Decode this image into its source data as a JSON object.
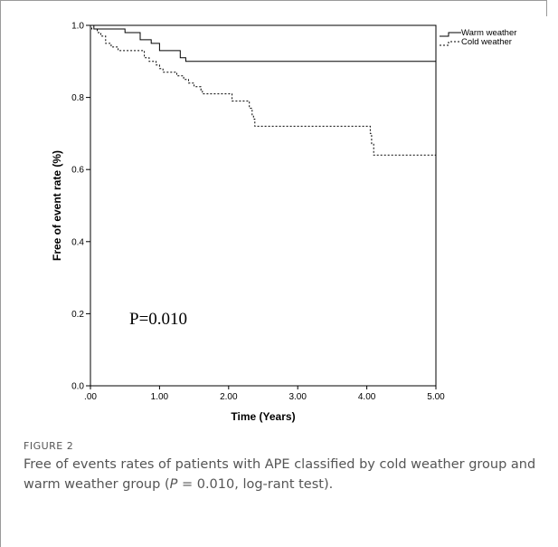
{
  "chart_data": {
    "type": "line",
    "xlabel": "Time (Years)",
    "ylabel": "Free of event rate (%)",
    "xlim": [
      0,
      5
    ],
    "ylim": [
      0,
      1
    ],
    "x_ticks": [
      ".00",
      "1.00",
      "2.00",
      "3.00",
      "4.00",
      "5.00"
    ],
    "y_ticks": [
      "0.0",
      "0.2",
      "0.4",
      "0.6",
      "0.8",
      "1.0"
    ],
    "legend_position": "top-right",
    "series": [
      {
        "name": "Warm weather",
        "style": "solid",
        "step_points": [
          [
            0,
            1.0
          ],
          [
            0.05,
            0.99
          ],
          [
            0.5,
            0.98
          ],
          [
            0.72,
            0.96
          ],
          [
            0.88,
            0.95
          ],
          [
            1.0,
            0.93
          ],
          [
            1.3,
            0.91
          ],
          [
            1.38,
            0.9
          ],
          [
            5.0,
            0.9
          ]
        ]
      },
      {
        "name": "Cold weather",
        "style": "dotted",
        "step_points": [
          [
            0,
            1.0
          ],
          [
            0.02,
            0.99
          ],
          [
            0.1,
            0.98
          ],
          [
            0.15,
            0.97
          ],
          [
            0.22,
            0.95
          ],
          [
            0.3,
            0.94
          ],
          [
            0.4,
            0.93
          ],
          [
            0.78,
            0.91
          ],
          [
            0.85,
            0.9
          ],
          [
            0.95,
            0.89
          ],
          [
            1.0,
            0.88
          ],
          [
            1.05,
            0.87
          ],
          [
            1.25,
            0.86
          ],
          [
            1.35,
            0.85
          ],
          [
            1.42,
            0.84
          ],
          [
            1.5,
            0.83
          ],
          [
            1.6,
            0.82
          ],
          [
            1.62,
            0.81
          ],
          [
            2.05,
            0.79
          ],
          [
            2.3,
            0.77
          ],
          [
            2.34,
            0.75
          ],
          [
            2.36,
            0.74
          ],
          [
            2.38,
            0.72
          ],
          [
            4.05,
            0.7
          ],
          [
            4.07,
            0.67
          ],
          [
            4.1,
            0.64
          ],
          [
            5.0,
            0.64
          ]
        ]
      }
    ],
    "annotation": "P=0.010"
  },
  "figure_label": "FIGURE 2",
  "caption": {
    "before": "Free of events rates of patients with APE classified by cold weather group and warm weather group (",
    "italic": "P",
    "after": " = 0.010, log-rant test)."
  }
}
